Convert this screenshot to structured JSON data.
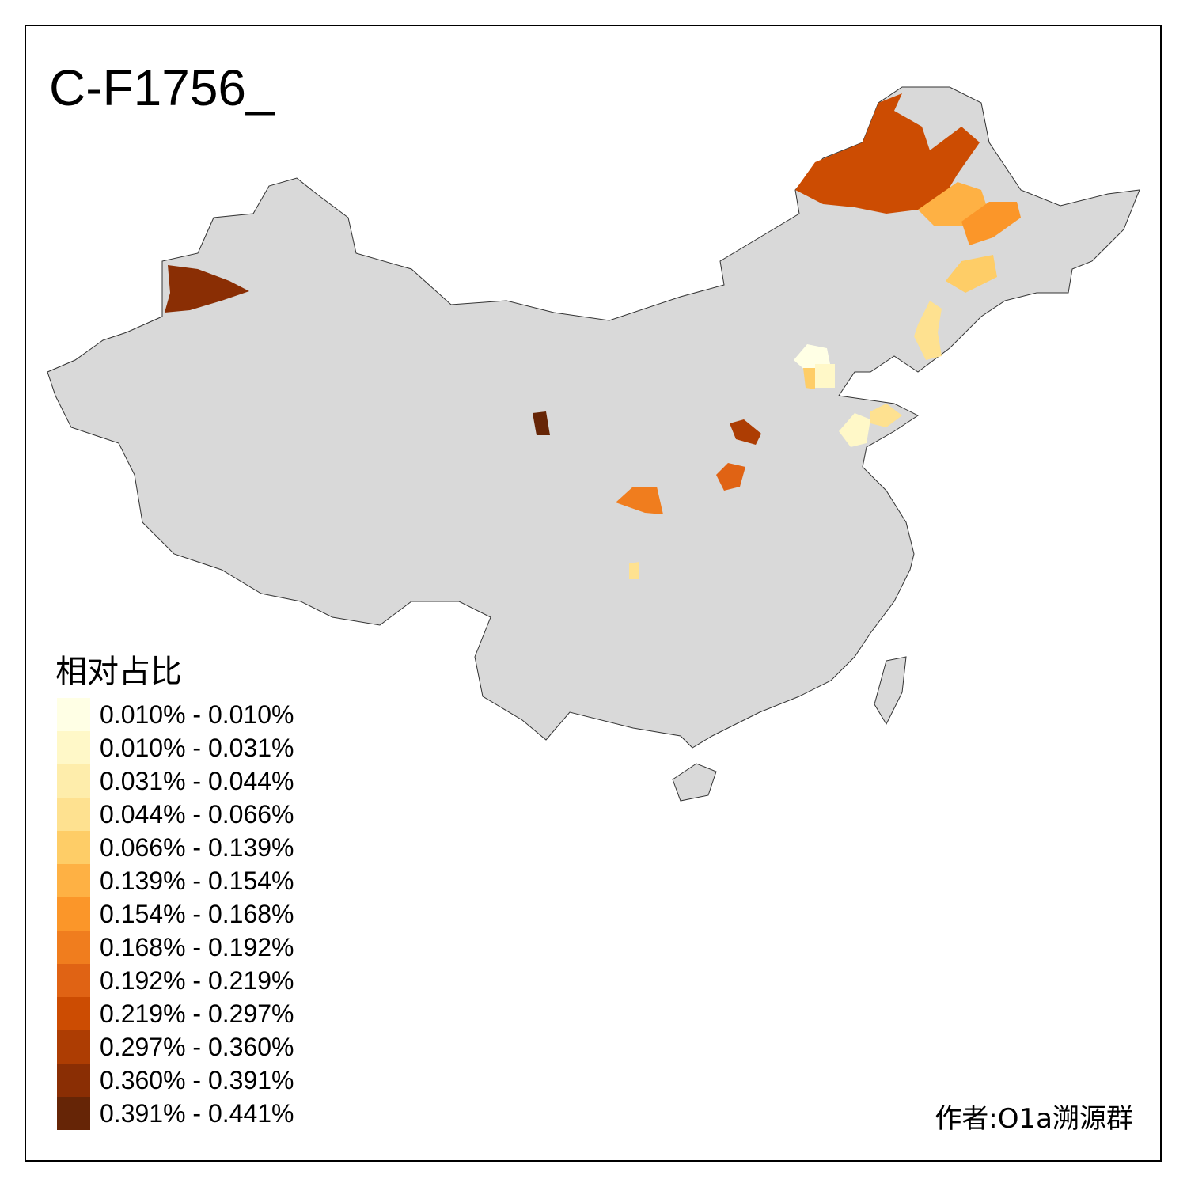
{
  "title": "C-F1756_",
  "legend": {
    "title": "相对占比",
    "items": [
      {
        "label": "0.010% - 0.010%",
        "color": "#FFFFE5"
      },
      {
        "label": "0.010% - 0.031%",
        "color": "#FFF8C8"
      },
      {
        "label": "0.031% - 0.044%",
        "color": "#FEEDAB"
      },
      {
        "label": "0.044% - 0.066%",
        "color": "#FEE190"
      },
      {
        "label": "0.066% - 0.139%",
        "color": "#FECD67"
      },
      {
        "label": "0.139% - 0.154%",
        "color": "#FEB144"
      },
      {
        "label": "0.154% - 0.168%",
        "color": "#FB9629"
      },
      {
        "label": "0.168% - 0.192%",
        "color": "#F07D1E"
      },
      {
        "label": "0.192% - 0.219%",
        "color": "#E06314"
      },
      {
        "label": "0.219% - 0.297%",
        "color": "#CC4C02"
      },
      {
        "label": "0.297% - 0.360%",
        "color": "#AD3D03"
      },
      {
        "label": "0.360% - 0.391%",
        "color": "#8A2E04"
      },
      {
        "label": "0.391% - 0.441%",
        "color": "#662506"
      }
    ]
  },
  "map": {
    "base_color": "#D9D9D9",
    "border_color": "#333333"
  },
  "author": "作者:O1a溯源群"
}
